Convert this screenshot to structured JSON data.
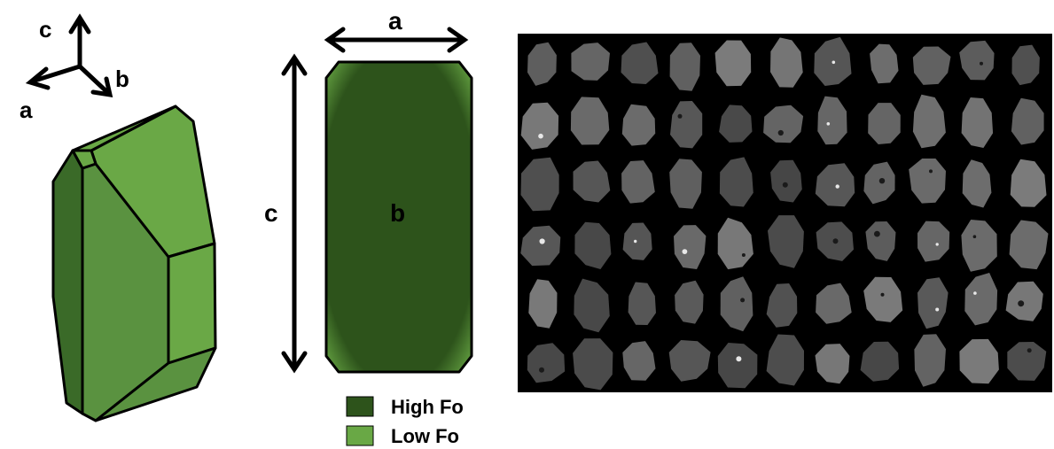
{
  "axes_icon": {
    "c": "c",
    "a": "a",
    "b": "b"
  },
  "section_view": {
    "a": "a",
    "c": "c",
    "b": "b"
  },
  "legend": [
    {
      "label": "High Fo",
      "color": "#2d531b"
    },
    {
      "label": "Low Fo",
      "color": "#69a845"
    }
  ],
  "colors": {
    "crystal_light": "#6aa846",
    "crystal_mid": "#5a9240",
    "crystal_dark": "#3a6a28",
    "background_bse": "#000000"
  }
}
